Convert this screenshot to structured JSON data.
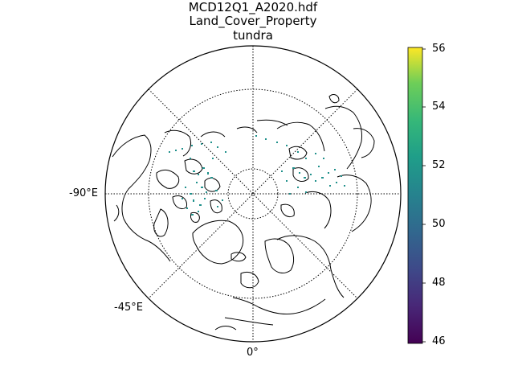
{
  "title": {
    "line1": "MCD12Q1_A2020.hdf",
    "line2": "Land_Cover_Property",
    "line3": "tundra"
  },
  "map": {
    "projection": "north-polar-stereographic",
    "longitude_labels": {
      "west": "-90°E",
      "southwest": "-45°E",
      "south": "0°"
    },
    "data_color": "#21918c",
    "coastline_color": "#000000"
  },
  "colorbar": {
    "colormap": "viridis",
    "min": 46,
    "max": 56,
    "ticks": [
      "46",
      "48",
      "50",
      "52",
      "54",
      "56"
    ],
    "tick_values": [
      46,
      48,
      50,
      52,
      54,
      56
    ]
  }
}
